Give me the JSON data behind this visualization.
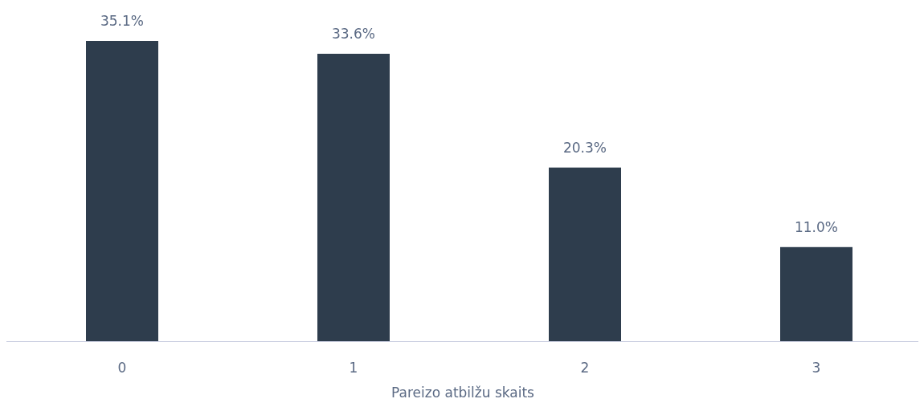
{
  "chart_data": {
    "type": "bar",
    "xlabel": "Pareizo atbilžu skaits",
    "categories": [
      "0",
      "1",
      "2",
      "3"
    ],
    "values": [
      35.1,
      33.6,
      20.3,
      11.0
    ],
    "color": "#2e3d4d",
    "value_labels": [
      "35.1%",
      "33.6%",
      "20.3%",
      "11.0%"
    ]
  }
}
